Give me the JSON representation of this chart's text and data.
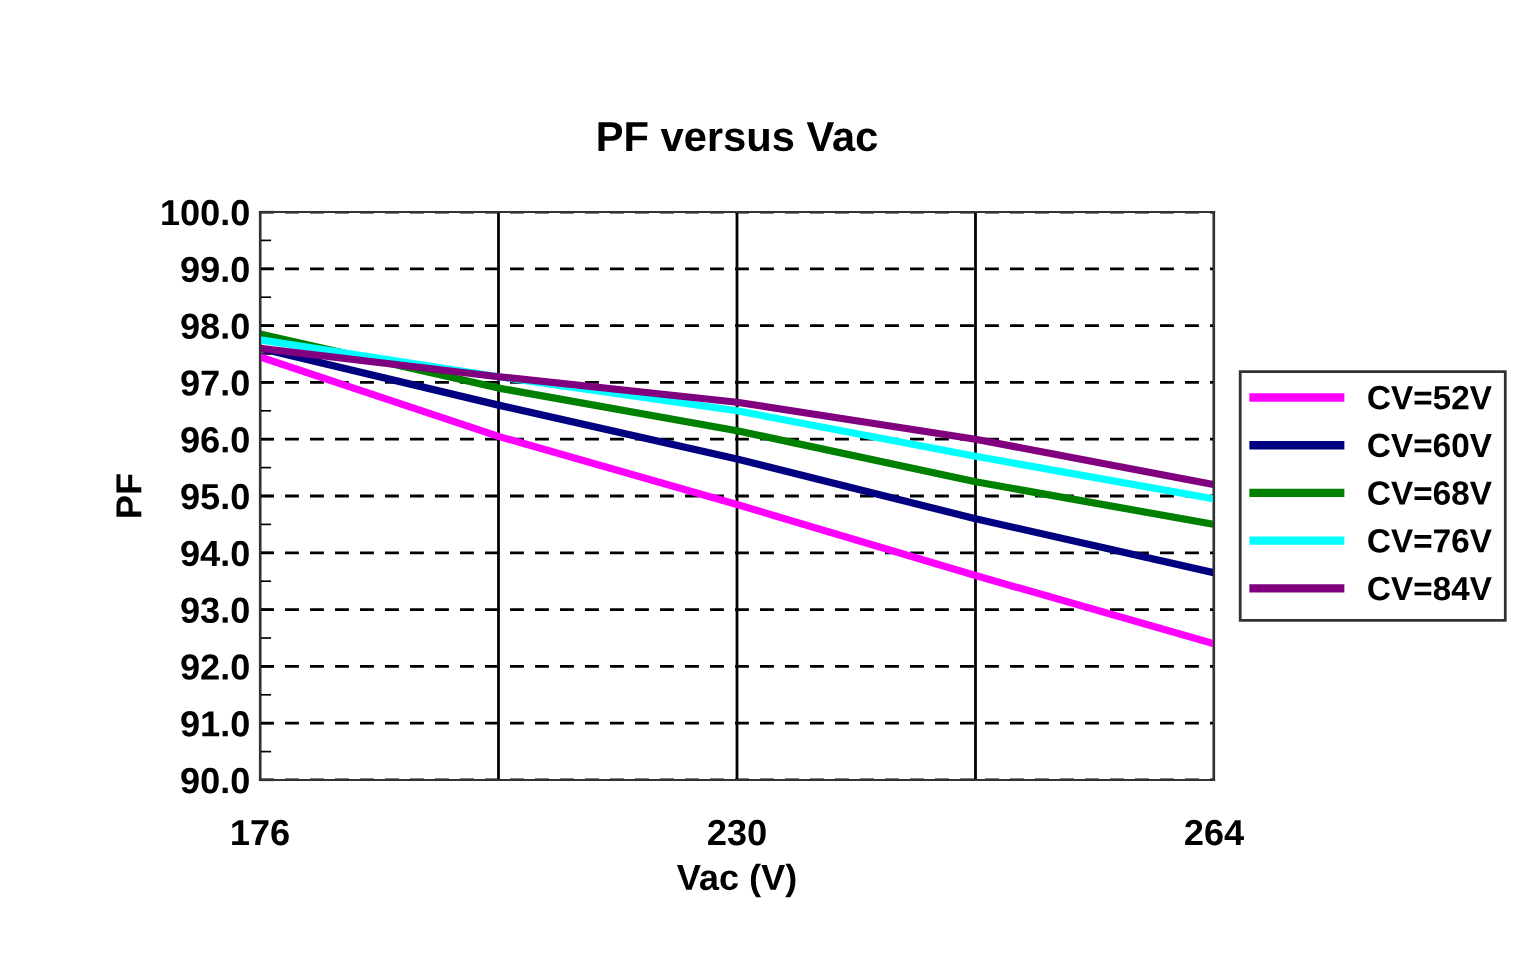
{
  "chart_data": {
    "type": "line",
    "title": "PF versus Vac",
    "xlabel": "Vac (V)",
    "ylabel": "PF",
    "categories": [
      "176",
      null,
      "230",
      null,
      "264"
    ],
    "series": [
      {
        "name": "CV=52V",
        "color": "#ff00ff",
        "values": [
          97.45,
          96.05,
          94.85,
          93.6,
          92.4
        ]
      },
      {
        "name": "CV=60V",
        "color": "#000080",
        "values": [
          97.6,
          96.6,
          95.65,
          94.6,
          93.65
        ]
      },
      {
        "name": "CV=68V",
        "color": "#008000",
        "values": [
          97.85,
          96.9,
          96.15,
          95.25,
          94.5
        ]
      },
      {
        "name": "CV=76V",
        "color": "#00ffff",
        "values": [
          97.75,
          97.1,
          96.5,
          95.7,
          94.95
        ]
      },
      {
        "name": "CV=84V",
        "color": "#800080",
        "values": [
          97.6,
          97.1,
          96.65,
          96.0,
          95.2
        ]
      }
    ],
    "ylim": [
      90,
      100
    ],
    "yticks": [
      {
        "value": 90,
        "label": "90.0"
      },
      {
        "value": 91,
        "label": "91.0"
      },
      {
        "value": 92,
        "label": "92.0"
      },
      {
        "value": 93,
        "label": "93.0"
      },
      {
        "value": 94,
        "label": "94.0"
      },
      {
        "value": 95,
        "label": "95.0"
      },
      {
        "value": 96,
        "label": "96.0"
      },
      {
        "value": 97,
        "label": "97.0"
      },
      {
        "value": 98,
        "label": "98.0"
      },
      {
        "value": 99,
        "label": "99.0"
      },
      {
        "value": 100,
        "label": "100.0"
      }
    ],
    "grid": true,
    "legend": "right",
    "marker": "none",
    "line_style": "solid"
  }
}
